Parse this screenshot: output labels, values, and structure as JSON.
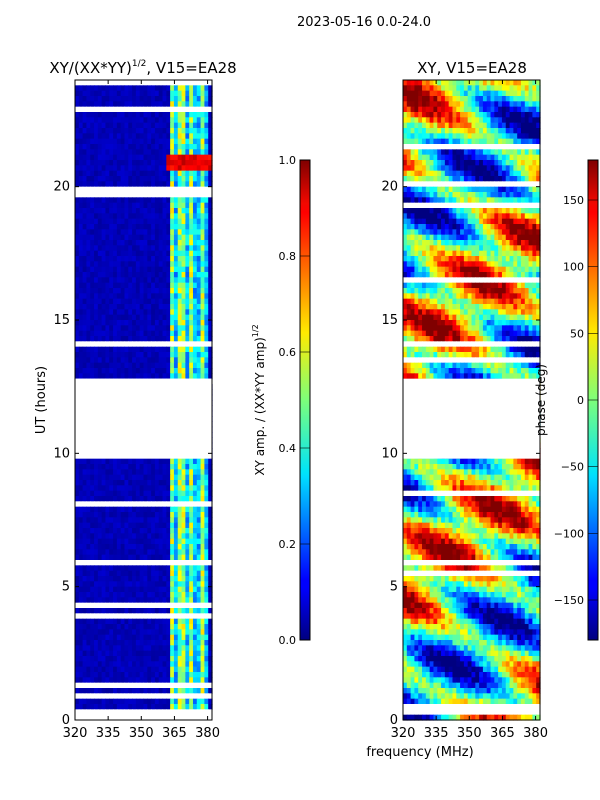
{
  "figure": {
    "suptitle": "2023-05-16 0.0-24.0",
    "shared_xlabel": "frequency (MHz)"
  },
  "chart_data": [
    {
      "type": "heatmap",
      "title_main": "XY/(XX*YY)",
      "title_exp": "1/2",
      "title_tail": ", V15=EA28",
      "ylabel": "UT (hours)",
      "xlim": [
        320,
        382
      ],
      "ylim": [
        0,
        24
      ],
      "xticks": [
        320,
        335,
        350,
        365,
        380
      ],
      "yticks": [
        0,
        5,
        10,
        15,
        20
      ],
      "gap_hours": [
        12.8,
        9.8
      ],
      "colormap": "jet",
      "colorbar": {
        "label_main": "XY amp. / (XX*YY amp)",
        "label_exp": "1/2",
        "range": [
          0.0,
          1.0
        ],
        "ticks": [
          "0.0",
          "0.2",
          "0.4",
          "0.6",
          "0.8",
          "1.0"
        ],
        "tick_values": [
          0.0,
          0.2,
          0.4,
          0.6,
          0.8,
          1.0
        ]
      }
    },
    {
      "type": "heatmap",
      "title": "XY, V15=EA28",
      "ylabel": "",
      "xlim": [
        320,
        382
      ],
      "ylim": [
        0,
        24
      ],
      "xticks": [
        320,
        335,
        350,
        365,
        380
      ],
      "yticks": [
        0,
        5,
        10,
        15,
        20
      ],
      "gap_hours": [
        12.8,
        9.8
      ],
      "colormap": "jet",
      "colorbar": {
        "label": "phase (deg)",
        "range": [
          -180,
          180
        ],
        "ticks": [
          "150",
          "100",
          "50",
          "0",
          "−50",
          "−100",
          "−150"
        ],
        "tick_values": [
          150,
          100,
          50,
          0,
          -50,
          -100,
          -150
        ]
      }
    }
  ]
}
